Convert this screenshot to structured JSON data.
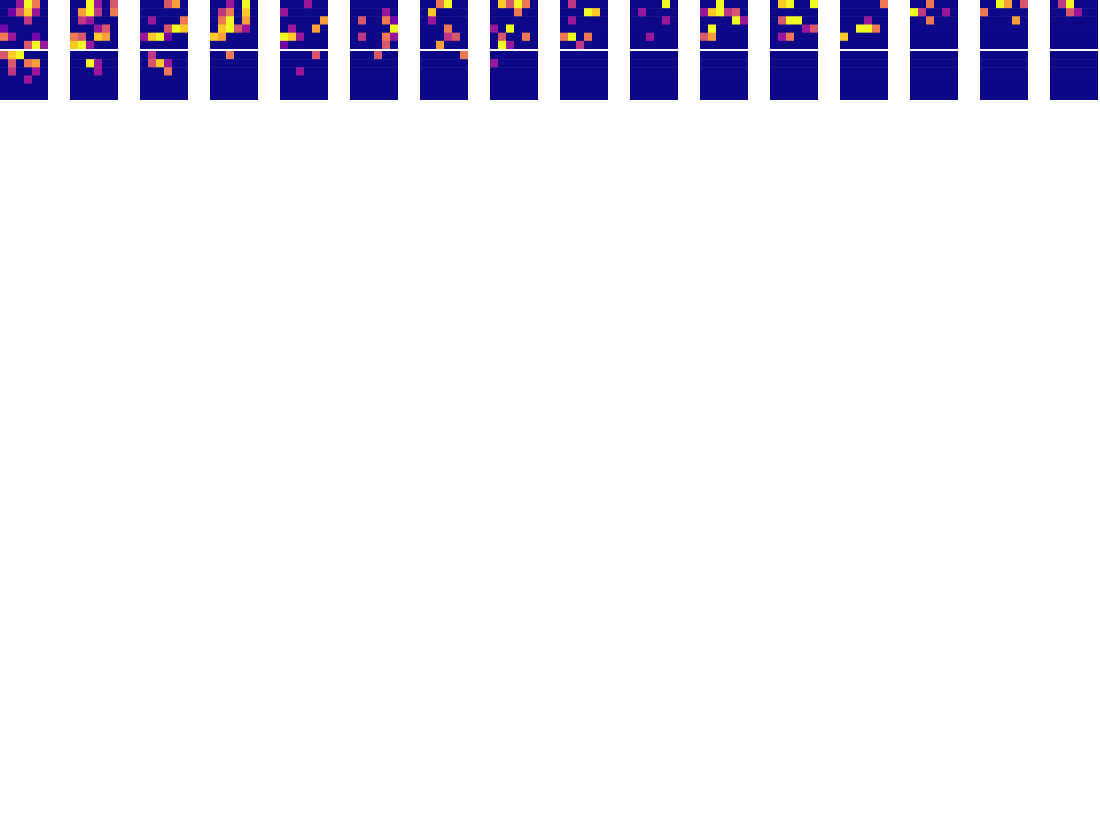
{
  "chart_data": {
    "type": "heatmap_grid",
    "tick_labels": false,
    "color_range": [
      0,
      9
    ],
    "rows": [
      [
        [
          0,
          0,
          3,
          9,
          6,
          0,
          0,
          2,
          5,
          8,
          3,
          0,
          0,
          0,
          0,
          4,
          0,
          0,
          2,
          0,
          0,
          0,
          0,
          0,
          6,
          3,
          0,
          0,
          2,
          0,
          0,
          0,
          0,
          5,
          9,
          3
        ],
        [
          0,
          0,
          9,
          3,
          0,
          5,
          0,
          7,
          9,
          4,
          0,
          6,
          0,
          4,
          3,
          0,
          0,
          0,
          0,
          0,
          0,
          3,
          5,
          0,
          6,
          5,
          0,
          8,
          7,
          0,
          8,
          9,
          3,
          0,
          0,
          0
        ],
        [
          0,
          0,
          0,
          5,
          7,
          0,
          0,
          0,
          0,
          0,
          0,
          0,
          0,
          3,
          0,
          0,
          0,
          6,
          0,
          0,
          0,
          5,
          9,
          8,
          3,
          8,
          9,
          2,
          0,
          0,
          0,
          0,
          0,
          0,
          0,
          0
        ],
        [
          0,
          0,
          3,
          0,
          9,
          0,
          0,
          4,
          6,
          0,
          8,
          0,
          0,
          6,
          9,
          0,
          7,
          0,
          0,
          8,
          9,
          5,
          3,
          0,
          8,
          7,
          0,
          0,
          0,
          0,
          0,
          0,
          0,
          0,
          0,
          0
        ],
        [
          0,
          0,
          0,
          3,
          0,
          0,
          3,
          0,
          0,
          0,
          0,
          0,
          0,
          0,
          0,
          0,
          0,
          7,
          0,
          3,
          0,
          0,
          7,
          0,
          9,
          8,
          3,
          0,
          0,
          0,
          2,
          0,
          0,
          0,
          0,
          0
        ],
        [
          0,
          0,
          0,
          0,
          0,
          0,
          0,
          0,
          0,
          0,
          3,
          0,
          0,
          5,
          0,
          0,
          6,
          2,
          0,
          0,
          0,
          0,
          0,
          9,
          0,
          4,
          0,
          0,
          6,
          3,
          0,
          0,
          0,
          0,
          5,
          0
        ],
        [
          0,
          0,
          6,
          9,
          0,
          0,
          0,
          8,
          0,
          0,
          0,
          0,
          0,
          3,
          0,
          0,
          0,
          0,
          0,
          0,
          0,
          6,
          0,
          0,
          0,
          0,
          0,
          4,
          5,
          0,
          0,
          0,
          7,
          0,
          0,
          0
        ],
        [
          0,
          8,
          5,
          9,
          6,
          0,
          0,
          0,
          0,
          6,
          0,
          0,
          0,
          0,
          0,
          0,
          0,
          0,
          3,
          0,
          9,
          0,
          0,
          0,
          0,
          5,
          0,
          0,
          6,
          0,
          0,
          9,
          3,
          0,
          0,
          0
        ],
        [
          0,
          4,
          0,
          0,
          0,
          0,
          0,
          0,
          0,
          9,
          8,
          0,
          0,
          3,
          0,
          0,
          0,
          0,
          0,
          0,
          0,
          0,
          0,
          0,
          6,
          9,
          0,
          6,
          0,
          0,
          0,
          0,
          4,
          0,
          0,
          0
        ],
        [
          0,
          0,
          0,
          0,
          9,
          0,
          0,
          3,
          0,
          0,
          0,
          0,
          0,
          0,
          0,
          0,
          3,
          0,
          0,
          0,
          0,
          0,
          0,
          0,
          0,
          0,
          3,
          0,
          0,
          0,
          0,
          0,
          0,
          0,
          0,
          0
        ],
        [
          0,
          0,
          9,
          0,
          0,
          0,
          3,
          8,
          9,
          4,
          5,
          0,
          0,
          0,
          0,
          0,
          9,
          3,
          0,
          9,
          0,
          0,
          0,
          0,
          5,
          7,
          0,
          0,
          0,
          0,
          0,
          0,
          0,
          0,
          0,
          0
        ],
        [
          0,
          8,
          9,
          0,
          0,
          9,
          0,
          0,
          0,
          0,
          0,
          0,
          0,
          5,
          9,
          9,
          0,
          0,
          0,
          0,
          0,
          0,
          3,
          5,
          0,
          3,
          6,
          0,
          0,
          0,
          0,
          0,
          0,
          0,
          0,
          0
        ],
        [
          0,
          0,
          0,
          0,
          0,
          6,
          0,
          0,
          0,
          0,
          0,
          0,
          0,
          0,
          0,
          3,
          0,
          0,
          0,
          0,
          9,
          9,
          6,
          0,
          8,
          0,
          0,
          0,
          0,
          0,
          0,
          0,
          0,
          0,
          0,
          0
        ],
        [
          0,
          0,
          6,
          0,
          0,
          0,
          9,
          4,
          0,
          0,
          3,
          0,
          0,
          0,
          6,
          0,
          0,
          0,
          0,
          0,
          0,
          0,
          0,
          0,
          0,
          0,
          0,
          0,
          0,
          0,
          0,
          0,
          0,
          0,
          0,
          0
        ],
        [
          0,
          0,
          9,
          7,
          0,
          5,
          6,
          0,
          0,
          0,
          0,
          0,
          0,
          0,
          0,
          0,
          7,
          0,
          0,
          0,
          0,
          0,
          0,
          0,
          0,
          0,
          0,
          0,
          0,
          0,
          0,
          0,
          0,
          0,
          0,
          0
        ],
        [
          0,
          4,
          9,
          0,
          0,
          0,
          0,
          0,
          5,
          3,
          0,
          0,
          0,
          0,
          0,
          0,
          0,
          0,
          0,
          0,
          0,
          0,
          0,
          0,
          0,
          0,
          0,
          0,
          0,
          0,
          0,
          0,
          0,
          0,
          0,
          0
        ]
      ],
      [
        [
          5,
          8,
          9,
          0,
          0,
          0,
          0,
          5,
          0,
          6,
          7,
          0,
          0,
          4,
          0,
          0,
          3,
          0,
          0,
          0,
          0,
          3,
          0,
          0,
          0,
          0,
          0,
          0,
          0,
          0,
          0,
          0,
          0,
          0,
          0,
          0
        ],
        [
          0,
          0,
          0,
          0,
          0,
          0,
          0,
          0,
          9,
          3,
          0,
          0,
          0,
          0,
          0,
          3,
          0,
          0,
          0,
          0,
          0,
          0,
          0,
          0,
          0,
          0,
          0,
          0,
          0,
          0,
          0,
          0,
          0,
          0,
          0,
          0
        ],
        [
          0,
          4,
          0,
          0,
          0,
          0,
          0,
          5,
          8,
          3,
          0,
          0,
          0,
          0,
          0,
          6,
          0,
          0,
          0,
          0,
          0,
          0,
          0,
          0,
          0,
          0,
          0,
          0,
          0,
          0,
          0,
          0,
          0,
          0,
          0,
          0
        ],
        [
          0,
          0,
          6,
          0,
          0,
          0,
          0,
          0,
          0,
          0,
          0,
          0,
          0,
          0,
          0,
          0,
          0,
          0,
          0,
          0,
          0,
          0,
          0,
          0,
          0,
          0,
          0,
          0,
          0,
          0,
          0,
          0,
          0,
          0,
          0,
          0
        ],
        [
          0,
          0,
          0,
          0,
          5,
          0,
          0,
          0,
          0,
          0,
          0,
          0,
          0,
          0,
          3,
          0,
          0,
          0,
          0,
          0,
          0,
          0,
          0,
          0,
          0,
          0,
          0,
          0,
          0,
          0,
          0,
          0,
          0,
          0,
          0,
          0
        ],
        [
          0,
          0,
          0,
          5,
          0,
          0,
          0,
          0,
          0,
          0,
          0,
          0,
          0,
          0,
          0,
          0,
          0,
          0,
          0,
          0,
          0,
          0,
          0,
          0,
          0,
          0,
          0,
          0,
          0,
          0,
          0,
          0,
          0,
          0,
          0,
          0
        ],
        [
          0,
          0,
          0,
          0,
          0,
          6,
          0,
          0,
          0,
          0,
          0,
          0,
          0,
          0,
          0,
          0,
          0,
          0,
          0,
          0,
          0,
          0,
          0,
          0,
          0,
          0,
          0,
          0,
          0,
          0,
          0,
          0,
          0,
          0,
          0,
          0
        ],
        [
          0,
          0,
          0,
          0,
          0,
          0,
          3,
          0,
          0,
          0,
          0,
          0,
          0,
          0,
          0,
          0,
          0,
          0,
          0,
          0,
          0,
          0,
          0,
          0,
          0,
          0,
          0,
          0,
          0,
          0,
          0,
          0,
          0,
          0,
          0,
          0
        ],
        [
          0,
          0,
          0,
          0,
          0,
          0,
          0,
          0,
          0,
          0,
          0,
          0,
          0,
          0,
          0,
          0,
          0,
          0,
          0,
          0,
          0,
          0,
          0,
          0,
          0,
          0,
          0,
          0,
          0,
          0,
          0,
          0,
          0,
          0,
          0,
          0
        ],
        [
          0,
          0,
          0,
          0,
          0,
          0,
          0,
          0,
          0,
          0,
          0,
          0,
          0,
          0,
          0,
          0,
          0,
          0,
          0,
          0,
          0,
          0,
          0,
          0,
          0,
          0,
          0,
          0,
          0,
          0,
          0,
          0,
          0,
          0,
          0,
          0
        ],
        [
          0,
          0,
          0,
          0,
          0,
          0,
          0,
          0,
          0,
          0,
          0,
          0,
          0,
          0,
          0,
          0,
          0,
          0,
          0,
          0,
          0,
          0,
          0,
          0,
          0,
          0,
          0,
          0,
          0,
          0,
          0,
          0,
          0,
          0,
          0,
          0
        ],
        [
          0,
          0,
          0,
          0,
          0,
          0,
          0,
          0,
          0,
          0,
          0,
          0,
          0,
          0,
          0,
          0,
          0,
          0,
          0,
          0,
          0,
          0,
          0,
          0,
          0,
          0,
          0,
          0,
          0,
          0,
          0,
          0,
          0,
          0,
          0,
          0
        ],
        [
          0,
          0,
          0,
          0,
          0,
          0,
          0,
          0,
          0,
          0,
          0,
          0,
          0,
          0,
          0,
          0,
          0,
          0,
          0,
          0,
          0,
          0,
          0,
          0,
          0,
          0,
          0,
          0,
          0,
          0,
          0,
          0,
          0,
          0,
          0,
          0
        ],
        [
          0,
          0,
          0,
          0,
          0,
          0,
          0,
          0,
          0,
          0,
          0,
          0,
          0,
          0,
          0,
          0,
          0,
          0,
          0,
          0,
          0,
          0,
          0,
          0,
          0,
          0,
          0,
          0,
          0,
          0,
          0,
          0,
          0,
          0,
          0,
          0
        ],
        [
          0,
          0,
          0,
          0,
          0,
          0,
          0,
          0,
          0,
          0,
          0,
          0,
          0,
          0,
          0,
          0,
          0,
          0,
          0,
          0,
          0,
          0,
          0,
          0,
          0,
          0,
          0,
          0,
          0,
          0,
          0,
          0,
          0,
          0,
          0,
          0
        ],
        [
          0,
          0,
          0,
          0,
          0,
          0,
          0,
          0,
          0,
          0,
          0,
          0,
          0,
          0,
          0,
          0,
          0,
          0,
          0,
          0,
          0,
          0,
          0,
          0,
          0,
          0,
          0,
          0,
          0,
          0,
          0,
          0,
          0,
          0,
          0,
          0
        ]
      ]
    ]
  }
}
